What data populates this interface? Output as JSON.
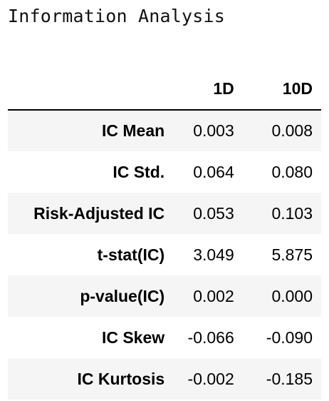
{
  "title": "Information Analysis",
  "table": {
    "columns": [
      "1D",
      "10D"
    ],
    "rows": [
      {
        "label": "IC Mean",
        "d1": "0.003",
        "d10": "0.008"
      },
      {
        "label": "IC Std.",
        "d1": "0.064",
        "d10": "0.080"
      },
      {
        "label": "Risk-Adjusted IC",
        "d1": "0.053",
        "d10": "0.103"
      },
      {
        "label": "t-stat(IC)",
        "d1": "3.049",
        "d10": "5.875"
      },
      {
        "label": "p-value(IC)",
        "d1": "0.002",
        "d10": "0.000"
      },
      {
        "label": "IC Skew",
        "d1": "-0.066",
        "d10": "-0.090"
      },
      {
        "label": "IC Kurtosis",
        "d1": "-0.002",
        "d10": "-0.185"
      }
    ]
  }
}
